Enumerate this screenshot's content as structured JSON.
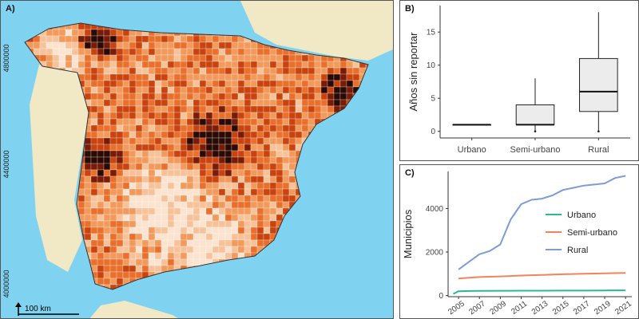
{
  "panel_a": {
    "label": "A)",
    "y_ticks": [
      "4800000",
      "4400000",
      "4000000"
    ],
    "scale_label": "100 km"
  },
  "chart_data": [
    {
      "type": "box",
      "panel_label": "B)",
      "ylabel": "Años sin reportar",
      "ylim": [
        -1,
        19
      ],
      "yticks": [
        0,
        5,
        10,
        15
      ],
      "categories": [
        "Urbano",
        "Semi-urbano",
        "Rural"
      ],
      "boxes": [
        {
          "min": 1,
          "q1": 1,
          "median": 1,
          "q3": 1,
          "max": 1
        },
        {
          "min": 0,
          "q1": 1,
          "median": 1,
          "q3": 4,
          "max": 8
        },
        {
          "min": 0,
          "q1": 3,
          "median": 6,
          "q3": 11,
          "max": 18
        }
      ],
      "outliers": [
        {
          "category": "Semi-urbano",
          "value": 0
        },
        {
          "category": "Rural",
          "value": 0
        }
      ],
      "box_fill": "#ececec",
      "grid": false
    },
    {
      "type": "line",
      "panel_label": "C)",
      "ylabel": "Municipios",
      "xlim": [
        2004,
        2021.6
      ],
      "ylim": [
        -50,
        5700
      ],
      "yticks": [
        0,
        2000,
        4000
      ],
      "xticks": [
        2005,
        2007,
        2009,
        2011,
        2013,
        2015,
        2017,
        2019,
        2021
      ],
      "legend_position": "center-right",
      "series": [
        {
          "name": "Urbano",
          "color": "#2bb89a",
          "x": [
            2004.5,
            2005,
            2006,
            2007,
            2009,
            2011,
            2013,
            2015,
            2017,
            2019,
            2021
          ],
          "y": [
            80,
            200,
            210,
            215,
            220,
            225,
            225,
            230,
            230,
            235,
            240
          ]
        },
        {
          "name": "Semi-urbano",
          "color": "#f0845c",
          "x": [
            2005,
            2006,
            2007,
            2009,
            2011,
            2013,
            2015,
            2017,
            2019,
            2021
          ],
          "y": [
            780,
            820,
            850,
            880,
            920,
            950,
            980,
            1000,
            1020,
            1040
          ]
        },
        {
          "name": "Rural",
          "color": "#7d9cd4",
          "x": [
            2005,
            2006,
            2007,
            2008,
            2009,
            2010,
            2011,
            2012,
            2013,
            2014,
            2015,
            2016,
            2017,
            2018,
            2019,
            2020,
            2021
          ],
          "y": [
            1200,
            1550,
            1900,
            2050,
            2350,
            3500,
            4200,
            4400,
            4450,
            4600,
            4850,
            4950,
            5050,
            5100,
            5150,
            5400,
            5500
          ]
        }
      ]
    }
  ]
}
